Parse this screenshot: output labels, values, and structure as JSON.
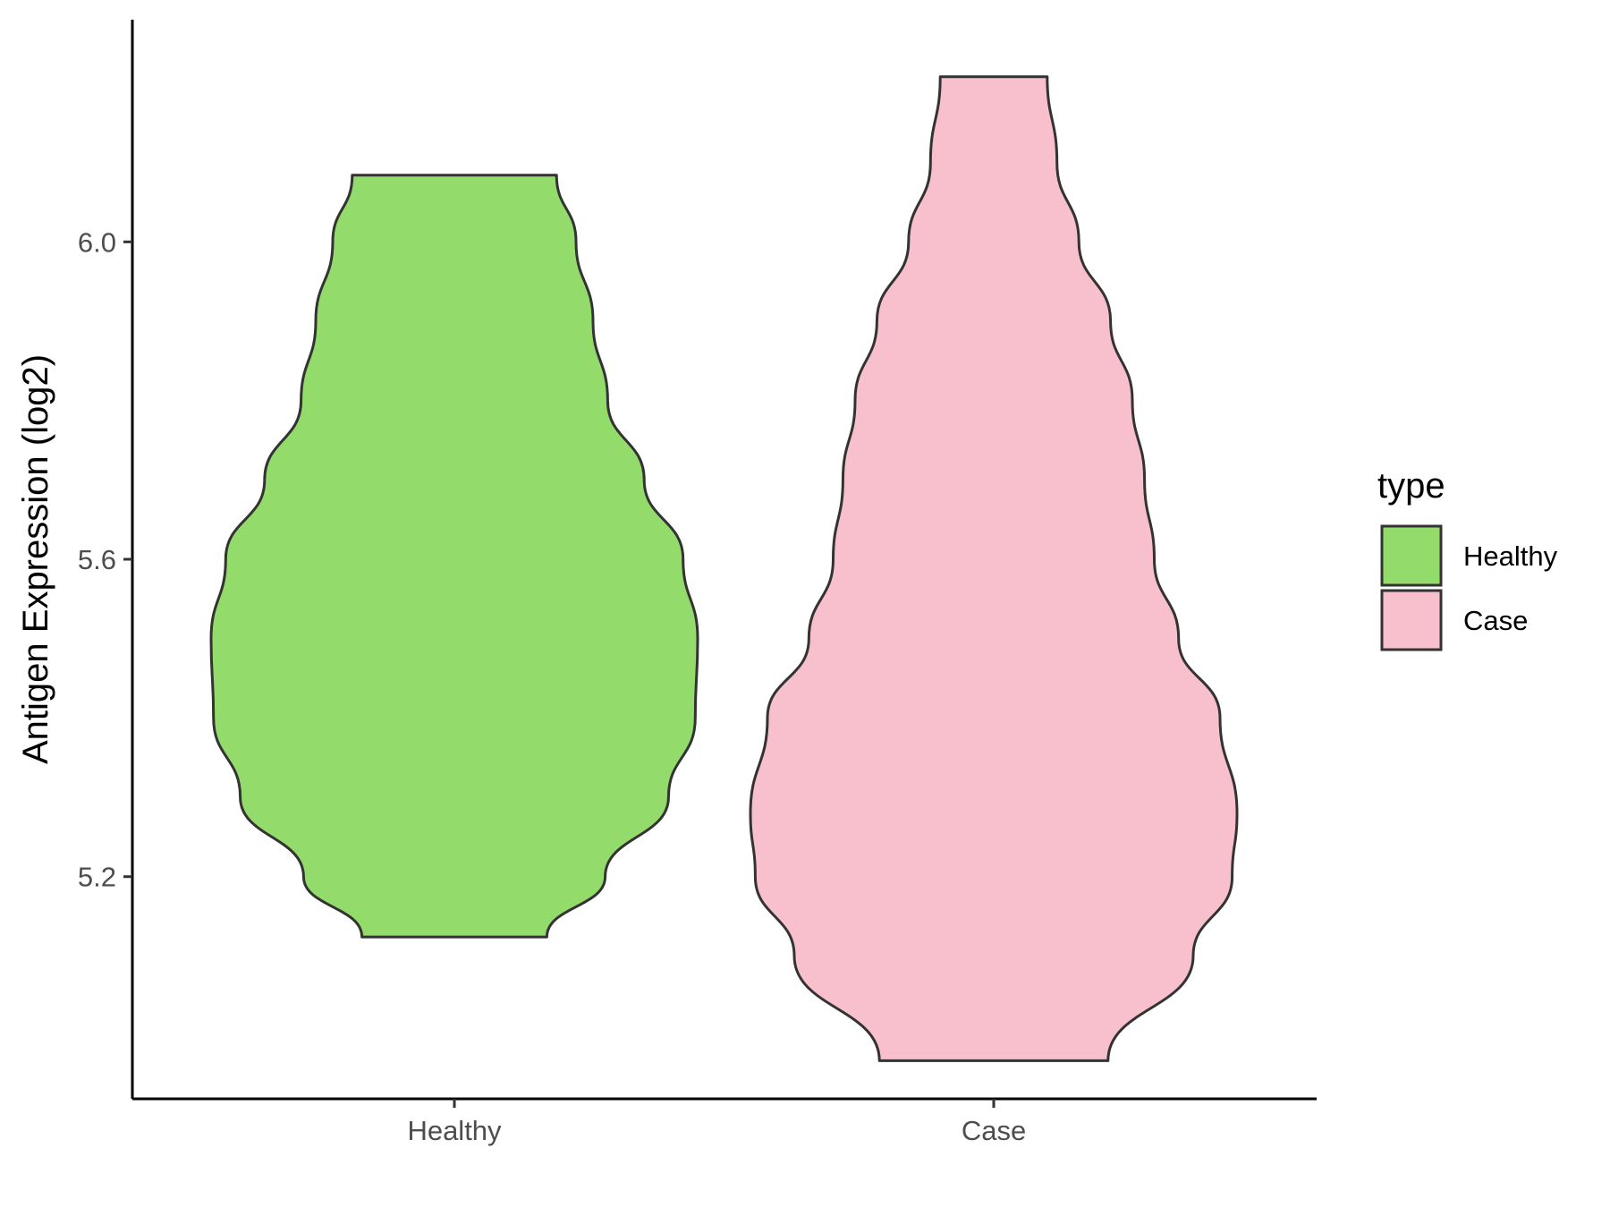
{
  "chart_data": {
    "type": "violin",
    "xlabel": "",
    "ylabel": "Antigen Expression (log2)",
    "categories": [
      "Healthy",
      "Case"
    ],
    "yticks": [
      "5.2",
      "5.6",
      "6.0"
    ],
    "ylim": [
      4.92,
      6.28
    ],
    "grid": false,
    "legend": {
      "title": "type",
      "position": "right",
      "entries": [
        {
          "label": "Healthy",
          "color": "#93DC6B"
        },
        {
          "label": "Case",
          "color": "#F7C0CC"
        }
      ]
    },
    "series": [
      {
        "category": "Healthy",
        "color": "#93DC6B",
        "min": 5.124,
        "max": 6.084,
        "density_profile": [
          {
            "y": 5.124,
            "width": 0.38
          },
          {
            "y": 5.2,
            "width": 0.62
          },
          {
            "y": 5.3,
            "width": 0.88
          },
          {
            "y": 5.4,
            "width": 0.99
          },
          {
            "y": 5.5,
            "width": 1.0
          },
          {
            "y": 5.6,
            "width": 0.94
          },
          {
            "y": 5.7,
            "width": 0.78
          },
          {
            "y": 5.8,
            "width": 0.63
          },
          {
            "y": 5.9,
            "width": 0.57
          },
          {
            "y": 6.0,
            "width": 0.5
          },
          {
            "y": 6.084,
            "width": 0.42
          }
        ]
      },
      {
        "category": "Case",
        "color": "#F7C0CC",
        "min": 4.968,
        "max": 6.208,
        "density_profile": [
          {
            "y": 4.968,
            "width": 0.47
          },
          {
            "y": 5.1,
            "width": 0.82
          },
          {
            "y": 5.2,
            "width": 0.98
          },
          {
            "y": 5.28,
            "width": 1.0
          },
          {
            "y": 5.4,
            "width": 0.93
          },
          {
            "y": 5.5,
            "width": 0.76
          },
          {
            "y": 5.6,
            "width": 0.66
          },
          {
            "y": 5.7,
            "width": 0.62
          },
          {
            "y": 5.8,
            "width": 0.57
          },
          {
            "y": 5.9,
            "width": 0.48
          },
          {
            "y": 6.0,
            "width": 0.35
          },
          {
            "y": 6.1,
            "width": 0.26
          },
          {
            "y": 6.208,
            "width": 0.22
          }
        ]
      }
    ]
  }
}
